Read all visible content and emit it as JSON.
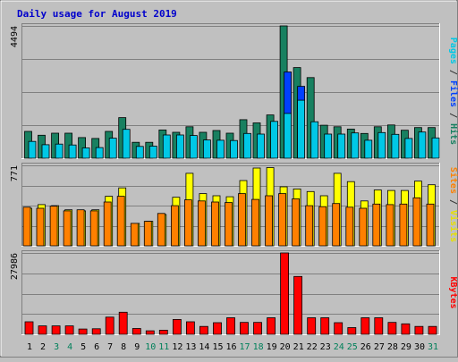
{
  "chart_data": {
    "type": "bar",
    "title": "Daily usage for August 2019",
    "categories": [
      "1",
      "2",
      "3",
      "4",
      "5",
      "6",
      "7",
      "8",
      "9",
      "10",
      "11",
      "12",
      "13",
      "14",
      "15",
      "16",
      "17",
      "18",
      "19",
      "20",
      "21",
      "22",
      "23",
      "24",
      "25",
      "26",
      "27",
      "28",
      "29",
      "30",
      "31"
    ],
    "weekend_days": [
      "3",
      "4",
      "10",
      "11",
      "17",
      "18",
      "24",
      "25",
      "31"
    ],
    "panels": [
      {
        "name": "hits-files-pages",
        "ymax": 4494,
        "ymax_label": "4494",
        "right_label": [
          {
            "text": "Pages",
            "color": "#00c8e6"
          },
          {
            "text": " / ",
            "color": "#333333"
          },
          {
            "text": "Files",
            "color": "#0040ff"
          },
          {
            "text": " / ",
            "color": "#333333"
          },
          {
            "text": "Hits",
            "color": "#188060"
          }
        ],
        "series": [
          {
            "name": "Hits",
            "color": "#188060",
            "values": [
              910,
              780,
              850,
              850,
              700,
              670,
              910,
              1380,
              540,
              540,
              960,
              880,
              1070,
              880,
              940,
              850,
              1310,
              1200,
              1470,
              4494,
              3080,
              2740,
              1120,
              1070,
              990,
              840,
              1070,
              1130,
              950,
              1040,
              1040
            ]
          },
          {
            "name": "Files",
            "color": "#0040ff",
            "values": [
              0,
              0,
              0,
              0,
              0,
              0,
              0,
              0,
              0,
              0,
              0,
              0,
              0,
              0,
              0,
              0,
              0,
              0,
              0,
              2930,
              2440,
              0,
              0,
              0,
              0,
              0,
              0,
              0,
              0,
              0,
              0
            ]
          },
          {
            "name": "Pages",
            "color": "#00c8e6",
            "values": [
              570,
              460,
              480,
              450,
              350,
              360,
              680,
              980,
              400,
              410,
              790,
              790,
              770,
              620,
              610,
              600,
              840,
              820,
              1250,
              1520,
              1970,
              1240,
              820,
              820,
              860,
              610,
              870,
              810,
              670,
              890,
              690
            ]
          }
        ]
      },
      {
        "name": "visits-sites",
        "ymax": 771,
        "ymax_label": "771",
        "right_label": [
          {
            "text": "Sites",
            "color": "#ff8000"
          },
          {
            "text": " / ",
            "color": "#333333"
          },
          {
            "text": "Visits",
            "color": "#e8e000"
          }
        ],
        "series": [
          {
            "name": "Visits",
            "color": "#ffff00",
            "values": [
              360,
              395,
              385,
              345,
              335,
              345,
              475,
              555,
              215,
              235,
              300,
              465,
              695,
              500,
              480,
              470,
              625,
              745,
              750,
              565,
              545,
              520,
              480,
              695,
              615,
              430,
              535,
              530,
              530,
              620,
              585
            ]
          },
          {
            "name": "Sites",
            "color": "#ff8000",
            "values": [
              370,
              360,
              380,
              335,
              345,
              335,
              420,
              475,
              215,
              235,
              310,
              385,
              440,
              430,
              420,
              415,
              500,
              445,
              480,
              500,
              450,
              385,
              375,
              405,
              370,
              360,
              400,
              395,
              400,
              460,
              400
            ]
          }
        ]
      },
      {
        "name": "kbytes",
        "ymax": 27986,
        "ymax_label": "27986",
        "right_label": [
          {
            "text": "KBytes",
            "color": "#ff0000"
          }
        ],
        "series": [
          {
            "name": "KBytes",
            "color": "#ff0000",
            "values": [
              4300,
              2900,
              2900,
              2900,
              1800,
              1900,
              5900,
              7600,
              2000,
              1200,
              1400,
              5100,
              4300,
              2700,
              4000,
              5700,
              4100,
              4100,
              5700,
              27986,
              19900,
              5700,
              5700,
              4000,
              2300,
              5700,
              5700,
              4100,
              3600,
              2700,
              2700
            ]
          }
        ]
      }
    ],
    "grid": true
  }
}
